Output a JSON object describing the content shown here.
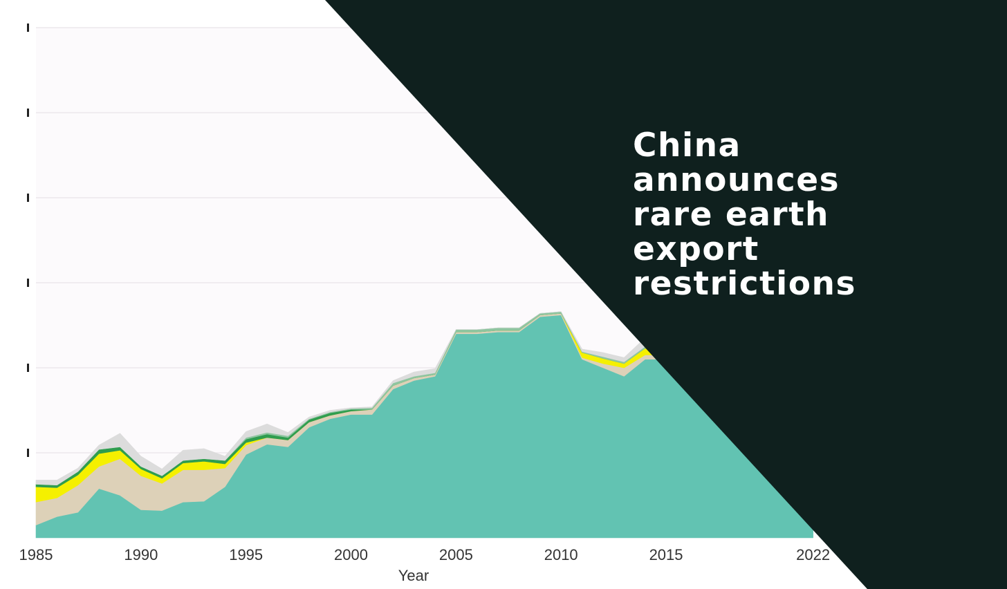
{
  "colors": {
    "page_background": "#ffffff",
    "plot_background": "#fcfafc",
    "grid": "#ece8ec",
    "banner": "#0f201e",
    "headline_text": "#ffffff",
    "axis_text": "#333333"
  },
  "headline": {
    "lines": [
      "China",
      "announces",
      "rare earth",
      "export",
      "restrictions"
    ]
  },
  "chart_data": {
    "type": "area",
    "stacked": true,
    "title": "",
    "xlabel": "Year",
    "ylabel": "",
    "x_ticks": [
      "1985",
      "1990",
      "1995",
      "2000",
      "2005",
      "2010",
      "2015",
      "2022"
    ],
    "xlim": [
      1985,
      2023
    ],
    "ylim": [
      0,
      6
    ],
    "grid": true,
    "legend": "none",
    "x": [
      1985,
      1986,
      1987,
      1988,
      1989,
      1990,
      1991,
      1992,
      1993,
      1994,
      1995,
      1996,
      1997,
      1998,
      1999,
      2000,
      2001,
      2002,
      2003,
      2004,
      2005,
      2006,
      2007,
      2008,
      2009,
      2010,
      2011,
      2012,
      2013,
      2014,
      2015,
      2016,
      2017,
      2018,
      2019,
      2020,
      2021,
      2022
    ],
    "series": [
      {
        "color": "#62c3b2",
        "values": [
          0.15,
          0.25,
          0.3,
          0.58,
          0.5,
          0.33,
          0.32,
          0.42,
          0.43,
          0.6,
          0.98,
          1.1,
          1.07,
          1.3,
          1.4,
          1.45,
          1.45,
          1.75,
          1.85,
          1.9,
          2.4,
          2.4,
          2.42,
          2.42,
          2.6,
          2.62,
          2.1,
          2.0,
          1.9,
          2.1,
          2.1,
          2.05,
          2.0,
          1.95,
          1.9,
          1.9,
          1.85,
          1.8
        ]
      },
      {
        "color": "#ddd1b8",
        "values": [
          0.27,
          0.22,
          0.32,
          0.26,
          0.43,
          0.4,
          0.32,
          0.38,
          0.37,
          0.22,
          0.11,
          0.08,
          0.08,
          0.06,
          0.04,
          0.04,
          0.06,
          0.04,
          0.03,
          0.02,
          0.02,
          0.02,
          0.02,
          0.02,
          0.02,
          0.02,
          0.02,
          0.05,
          0.1,
          0.05,
          0.05,
          0.05,
          0.05,
          0.05,
          0.05,
          0.05,
          0.05,
          0.05
        ]
      },
      {
        "color": "#f5f000",
        "values": [
          0.18,
          0.12,
          0.12,
          0.15,
          0.1,
          0.08,
          0.06,
          0.08,
          0.1,
          0.05,
          0.03,
          0.0,
          0.0,
          0.0,
          0.0,
          0.0,
          0.0,
          0.0,
          0.0,
          0.0,
          0.0,
          0.0,
          0.0,
          0.0,
          0.0,
          0.0,
          0.06,
          0.06,
          0.05,
          0.08,
          0.05,
          0.03,
          0.03,
          0.03,
          0.03,
          0.03,
          0.03,
          0.03
        ]
      },
      {
        "color": "#2f9d4f",
        "values": [
          0.03,
          0.03,
          0.04,
          0.05,
          0.04,
          0.03,
          0.03,
          0.03,
          0.03,
          0.04,
          0.04,
          0.04,
          0.03,
          0.03,
          0.03,
          0.02,
          0.0,
          0.0,
          0.0,
          0.0,
          0.0,
          0.0,
          0.0,
          0.0,
          0.0,
          0.0,
          0.0,
          0.0,
          0.0,
          0.0,
          0.0,
          0.0,
          0.0,
          0.0,
          0.0,
          0.0,
          0.0,
          0.0
        ]
      },
      {
        "color": "#8fc5a0",
        "values": [
          0.0,
          0.0,
          0.0,
          0.0,
          0.0,
          0.0,
          0.0,
          0.0,
          0.0,
          0.0,
          0.02,
          0.02,
          0.02,
          0.01,
          0.01,
          0.01,
          0.02,
          0.03,
          0.02,
          0.02,
          0.03,
          0.03,
          0.03,
          0.03,
          0.02,
          0.02,
          0.01,
          0.02,
          0.02,
          0.02,
          0.02,
          0.02,
          0.02,
          0.02,
          0.02,
          0.02,
          0.02,
          0.02
        ]
      },
      {
        "color": "#dcdcdc",
        "values": [
          0.05,
          0.06,
          0.04,
          0.05,
          0.16,
          0.12,
          0.08,
          0.12,
          0.12,
          0.05,
          0.07,
          0.1,
          0.04,
          0.02,
          0.02,
          0.01,
          0.01,
          0.03,
          0.05,
          0.05,
          0.0,
          0.0,
          0.0,
          0.0,
          0.0,
          0.0,
          0.03,
          0.05,
          0.05,
          0.1,
          0.05,
          0.05,
          0.05,
          0.05,
          0.05,
          0.05,
          0.05,
          0.05
        ]
      }
    ]
  }
}
